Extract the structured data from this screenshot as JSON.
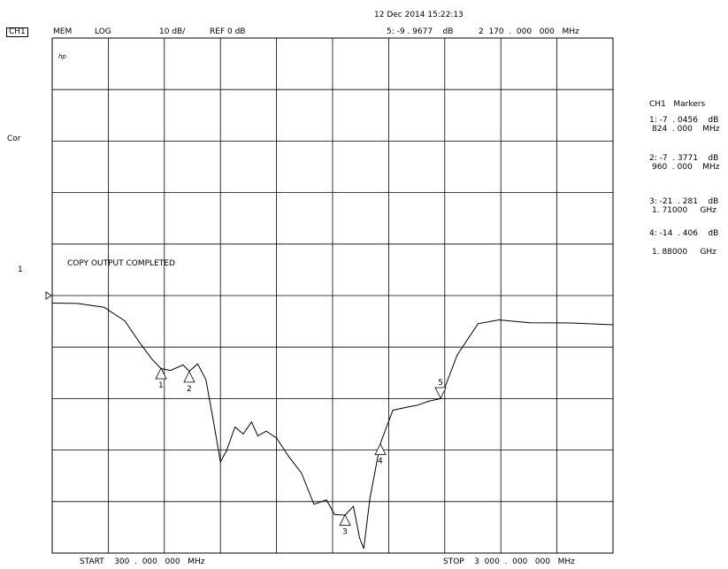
{
  "header": {
    "datetime": "12 Dec 2014  15:22:13",
    "channel": "CH1",
    "mem": "MEM",
    "format": "LOG",
    "scale": "10 dB/",
    "ref": "REF 0 dB",
    "active_marker": "5: -9 . 9677    dB",
    "active_marker_freq": "2  170  .  000   000   MHz"
  },
  "side": {
    "cor": "Cor",
    "ref_pos": "1"
  },
  "plot": {
    "hp_logo": "hp",
    "message": "COPY OUTPUT COMPLETED"
  },
  "footer": {
    "start": "START    300  .  000   000   MHz",
    "stop": "STOP    3  000  .  000   000   MHz"
  },
  "markers_panel": {
    "title": "CH1   Markers",
    "entries": [
      {
        "line1": "1: -7  . 0456    dB",
        "line2": "824  . 000    MHz"
      },
      {
        "line1": "2: -7  . 3771    dB",
        "line2": "960  . 000    MHz"
      },
      {
        "line1": "3: -21  . 281    dB",
        "line2": "1. 71000     GHz"
      },
      {
        "line1": "4: -14  . 406    dB",
        "line2": "1. 88000     GHz"
      }
    ]
  },
  "chart_data": {
    "type": "line",
    "title": "",
    "xlabel": "",
    "ylabel": "",
    "x_unit": "MHz",
    "y_unit": "dB",
    "xlim": [
      300,
      3000
    ],
    "ylim": [
      -50,
      0
    ],
    "grid": true,
    "x_divisions": 10,
    "y_divisions": 10,
    "reference_level_db": 0,
    "colors": {
      "trace": "#000000",
      "grid": "#000000"
    },
    "series": [
      {
        "x": [
          300,
          420,
          550,
          650,
          720,
          780,
          824,
          870,
          930,
          960,
          1000,
          1040,
          1080,
          1110,
          1140,
          1180,
          1220,
          1260,
          1290,
          1330,
          1380,
          1440,
          1500,
          1560,
          1620,
          1660,
          1710,
          1750,
          1780,
          1800,
          1830,
          1880,
          1940,
          2000,
          2060,
          2110,
          2170,
          2250,
          2350,
          2450,
          2600,
          2800,
          3000
        ],
        "y": [
          -0.7,
          -0.8,
          -1.1,
          -2.5,
          -4.5,
          -6.2,
          -7.05,
          -7.3,
          -6.7,
          -7.38,
          -6.6,
          -8.2,
          -12.6,
          -16.2,
          -15.0,
          -12.8,
          -13.4,
          -12.3,
          -13.6,
          -13.2,
          -13.8,
          -15.7,
          -17.2,
          -20.3,
          -19.8,
          -21.3,
          -21.28,
          -20.5,
          -23.5,
          -24.6,
          -19.6,
          -14.4,
          -11.1,
          -10.9,
          -10.6,
          -10.3,
          -9.97,
          -5.8,
          -2.7,
          -2.4,
          -2.6,
          -2.7,
          -2.8
        ]
      }
    ],
    "markers": [
      {
        "label": "1",
        "x": 824,
        "y": -7.0456
      },
      {
        "label": "2",
        "x": 960,
        "y": -7.3771
      },
      {
        "label": "3",
        "x": 1710,
        "y": -21.281
      },
      {
        "label": "4",
        "x": 1880,
        "y": -14.406
      },
      {
        "label": "5",
        "x": 2170,
        "y": -9.9677
      }
    ]
  }
}
